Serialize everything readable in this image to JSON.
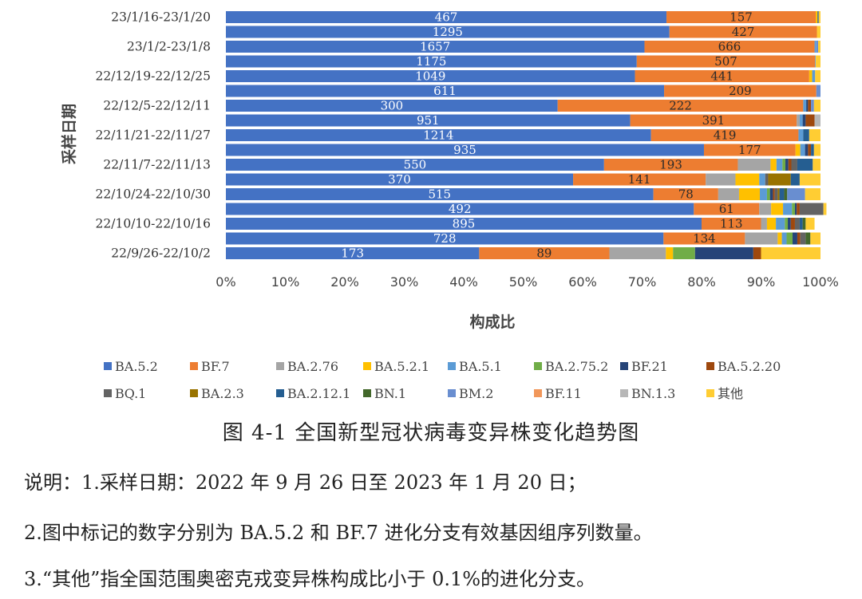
{
  "chart_data": {
    "type": "bar",
    "orientation": "horizontal",
    "stacked": "100%",
    "ylabel": "采样日期",
    "xlabel": "构成比",
    "x_ticks": [
      "0%",
      "10%",
      "20%",
      "30%",
      "40%",
      "50%",
      "60%",
      "70%",
      "80%",
      "90%",
      "100%"
    ],
    "y_tick_labels": [
      "23/1/16-23/1/20",
      "23/1/2-23/1/8",
      "22/12/19-22/12/25",
      "22/12/5-22/12/11",
      "22/11/21-22/11/27",
      "22/11/7-22/11/13",
      "22/10/24-22/10/30",
      "22/10/10-22/10/16",
      "22/9/26-22/10/2"
    ],
    "legend_position": "bottom",
    "series": [
      {
        "name": "BA.5.2",
        "color": "#4472C4",
        "values": [
          74.1,
          74.6,
          70.4,
          69.1,
          68.8,
          73.7,
          55.8,
          68.0,
          71.5,
          80.4,
          63.6,
          58.4,
          71.9,
          78.7,
          80.0,
          73.6,
          42.6
        ],
        "labels": [
          467,
          1295,
          1657,
          1175,
          1049,
          611,
          300,
          951,
          1214,
          935,
          550,
          370,
          515,
          492,
          895,
          728,
          173
        ]
      },
      {
        "name": "BF.7",
        "color": "#ED7D31",
        "values": [
          25.1,
          24.8,
          28.6,
          30.0,
          29.3,
          25.6,
          41.3,
          28.0,
          24.8,
          15.4,
          22.5,
          22.3,
          10.9,
          11.0,
          10.0,
          13.7,
          21.9
        ],
        "labels": [
          157,
          427,
          666,
          507,
          441,
          209,
          222,
          391,
          419,
          177,
          193,
          141,
          78,
          61,
          113,
          134,
          89
        ]
      },
      {
        "name": "BA.2.76",
        "color": "#A5A5A5",
        "values": [
          0,
          0,
          0,
          0,
          0,
          0,
          0,
          0.5,
          0,
          0,
          5.5,
          5.0,
          3.5,
          2.0,
          1.0,
          5.5,
          9.5
        ]
      },
      {
        "name": "BA.5.2.1",
        "color": "#FFC000",
        "values": [
          0.3,
          0,
          0,
          0,
          0.5,
          0,
          0,
          0,
          0,
          0.8,
          1.0,
          4.0,
          3.5,
          2.0,
          1.5,
          0.7,
          1.2
        ]
      },
      {
        "name": "BA.5.1",
        "color": "#5B9BD5",
        "values": [
          0,
          0,
          0.3,
          0.1,
          0.5,
          0,
          0.5,
          0.5,
          0.8,
          0.8,
          1.0,
          1.0,
          1.2,
          1.5,
          1.5,
          0.8,
          0
        ]
      },
      {
        "name": "BA.2.75.2",
        "color": "#70AD47",
        "values": [
          0,
          0,
          0,
          0,
          0,
          0,
          0,
          0,
          0,
          0,
          0.5,
          0,
          0.5,
          0.5,
          0.5,
          1.0,
          3.7
        ]
      },
      {
        "name": "BF.21",
        "color": "#264478",
        "values": [
          0,
          0,
          0,
          0,
          0,
          0,
          0.3,
          0.5,
          0,
          0.5,
          0.5,
          0,
          0.5,
          0.3,
          0.5,
          0.8,
          9.8
        ]
      },
      {
        "name": "BA.5.2.20",
        "color": "#9E480E",
        "values": [
          0,
          0,
          0,
          0,
          0,
          0,
          0.5,
          1.5,
          0,
          0.5,
          0.5,
          0,
          0.3,
          0.5,
          0.7,
          0.5,
          1.3
        ]
      },
      {
        "name": "BQ.1",
        "color": "#636363",
        "values": [
          0,
          0,
          0,
          0,
          0,
          0,
          0,
          0,
          0,
          0,
          1.0,
          0.5,
          0.5,
          4.0,
          0.8,
          0.9,
          0
        ]
      },
      {
        "name": "BA.2.3",
        "color": "#997300",
        "values": [
          0,
          0,
          0,
          0,
          0,
          0,
          0,
          0,
          0,
          0,
          0,
          3.8,
          0.3,
          0,
          0,
          0,
          0
        ]
      },
      {
        "name": "BA.2.12.1",
        "color": "#255E91",
        "values": [
          0.2,
          0,
          0,
          0,
          0,
          0,
          0,
          0,
          1.0,
          0.5,
          2.6,
          1.5,
          0.8,
          0,
          0.5,
          0,
          0
        ]
      },
      {
        "name": "BN.1",
        "color": "#43682B",
        "values": [
          0,
          0,
          0,
          0,
          0,
          0,
          0,
          0,
          0,
          0,
          0,
          0,
          0.5,
          0,
          0.5,
          0.8,
          0
        ]
      },
      {
        "name": "BM.2",
        "color": "#698ED0",
        "values": [
          0,
          0,
          0.3,
          0,
          0,
          0.7,
          0.5,
          0,
          0,
          0,
          0,
          0,
          3.0,
          0,
          0,
          0,
          0
        ]
      },
      {
        "name": "BF.11",
        "color": "#F1975A",
        "values": [
          0,
          0,
          0,
          0,
          0,
          0,
          0,
          0,
          0,
          0,
          0,
          0,
          0,
          0,
          0,
          0,
          0
        ]
      },
      {
        "name": "BN.1.3",
        "color": "#B7B7B7",
        "values": [
          0,
          0,
          0,
          0,
          0,
          0,
          0,
          1.0,
          0,
          0,
          0,
          0,
          0,
          0,
          0,
          0,
          0
        ]
      },
      {
        "name": "其他",
        "color": "#FFCD33",
        "values": [
          0.3,
          0.6,
          0.4,
          0.8,
          0.9,
          0,
          1.1,
          0,
          1.9,
          1.1,
          1.3,
          3.5,
          2.6,
          0.5,
          1.5,
          1.7,
          10.0
        ]
      }
    ]
  },
  "caption": "图 4-1 全国新型冠状病毒变异株变化趋势图",
  "notes": [
    "说明：1.采样日期：2022 年 9 月 26 日至 2023 年 1 月 20 日；",
    "2.图中标记的数字分别为 BA.5.2 和 BF.7 进化分支有效基因组序列数量。",
    "3.“其他”指全国范围奥密克戎变异株构成比小于 0.1%的进化分支。"
  ]
}
